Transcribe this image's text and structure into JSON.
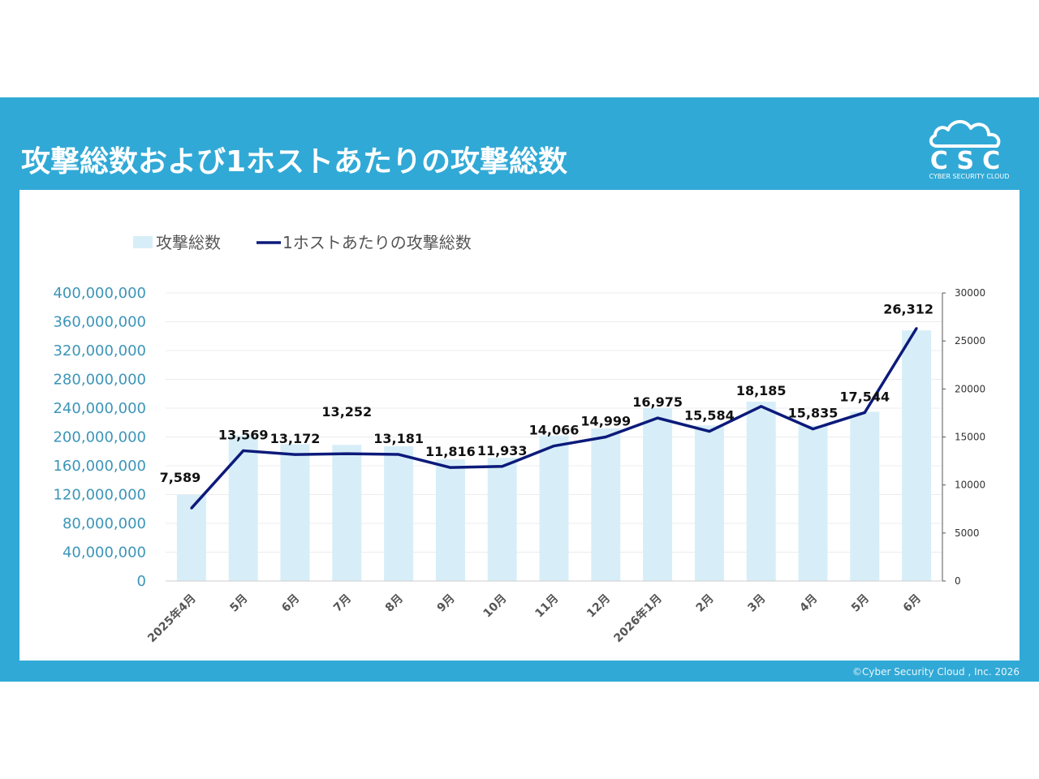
{
  "header": {
    "title": "攻撃総数および1ホストあたりの攻撃総数",
    "logo_text": "CSC",
    "logo_subtext": "CYBER SECURITY CLOUD"
  },
  "footer": {
    "copyright": "©Cyber Security Cloud , Inc. 2026"
  },
  "colors": {
    "band": "#31a9d6",
    "bar": "#d7eef8",
    "line": "#0c1a7a"
  },
  "chart_data": {
    "type": "bar",
    "legend_position": "top",
    "grid": true,
    "categories": [
      "2025年4月",
      "5月",
      "6月",
      "7月",
      "8月",
      "9月",
      "10月",
      "11月",
      "12月",
      "2026年1月",
      "2月",
      "3月",
      "4月",
      "5月",
      "6月"
    ],
    "series": [
      {
        "name": "攻撃総数",
        "type": "bar",
        "axis": "left",
        "values": [
          120000000,
          202000000,
          190000000,
          189000000,
          187000000,
          169000000,
          171000000,
          202000000,
          212000000,
          240000000,
          216000000,
          249000000,
          216000000,
          235000000,
          348000000
        ]
      },
      {
        "name": "1ホストあたりの攻撃総数",
        "type": "line",
        "axis": "right",
        "values": [
          7589,
          13569,
          13172,
          13252,
          13181,
          11816,
          11933,
          14066,
          14999,
          16975,
          15584,
          18185,
          15835,
          17544,
          26312
        ],
        "labels": [
          "7,589",
          "13,569",
          "13,172",
          "13,252",
          "13,181",
          "11,816",
          "11,933",
          "14,066",
          "14,999",
          "16,975",
          "15,584",
          "18,185",
          "15,835",
          "17,544",
          "26,312"
        ]
      }
    ],
    "y_left": {
      "min": 0,
      "max": 400000000,
      "ticks": [
        "0",
        "40,000,000",
        "80,000,000",
        "120,000,000",
        "160,000,000",
        "200,000,000",
        "240,000,000",
        "280,000,000",
        "320,000,000",
        "360,000,000",
        "400,000,000"
      ]
    },
    "y_right": {
      "min": 0,
      "max": 30000,
      "ticks": [
        "0",
        "5000",
        "10000",
        "15000",
        "20000",
        "25000",
        "30000"
      ]
    }
  }
}
